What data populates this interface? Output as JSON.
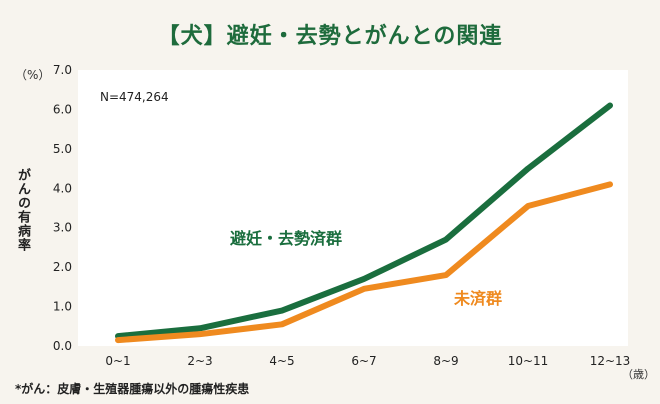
{
  "title": "【犬】避妊・去勢とがんとの関連",
  "chart_data": {
    "type": "line",
    "title": "【犬】避妊・去勢とがんとの関連",
    "annotation": "N=474,264",
    "y_unit": "（%）",
    "x_unit": "（歳）",
    "ylabel": "がんの有病率",
    "xlabel": "",
    "categories": [
      "0~1",
      "2~3",
      "4~5",
      "6~7",
      "8~9",
      "10~11",
      "12~13"
    ],
    "ylim": [
      0,
      7
    ],
    "yticks": [
      "0.0",
      "1.0",
      "2.0",
      "3.0",
      "4.0",
      "5.0",
      "6.0",
      "7.0"
    ],
    "grid": false,
    "series": [
      {
        "name": "避妊・去勢済群",
        "color": "#1a6e3e",
        "values": [
          0.25,
          0.45,
          0.9,
          1.7,
          2.7,
          4.5,
          6.1
        ]
      },
      {
        "name": "未済群",
        "color": "#ef8a1f",
        "values": [
          0.15,
          0.3,
          0.55,
          1.45,
          1.8,
          3.55,
          4.1
        ]
      }
    ]
  },
  "footnote": "*がん：皮膚・生殖器腫瘍以外の腫瘍性疾患"
}
